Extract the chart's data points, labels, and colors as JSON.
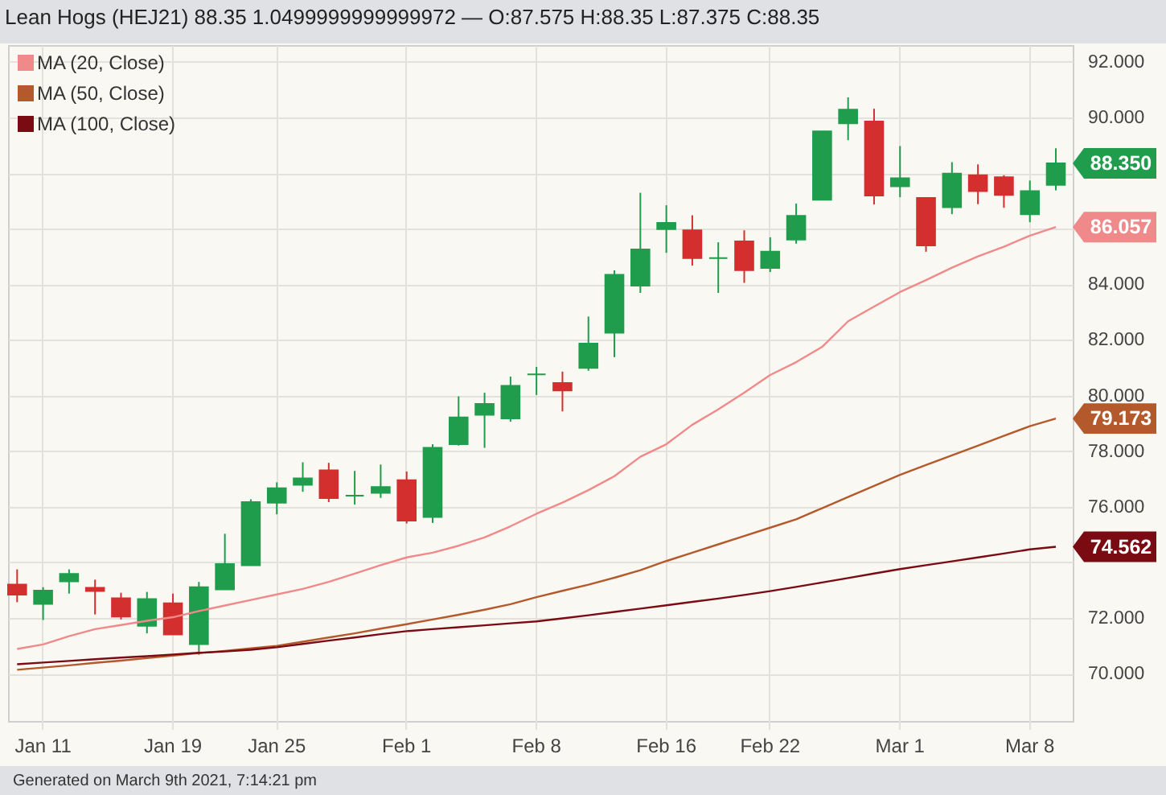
{
  "chart_data": {
    "type": "candlestick",
    "title": "Lean Hogs (HEJ21) 88.35 1.0499999999999972 — O:87.575 H:88.35 L:87.375 C:88.35",
    "categories": [
      null,
      "Jan 11",
      null,
      null,
      null,
      null,
      "Jan 19",
      null,
      null,
      null,
      "Jan 25",
      null,
      null,
      null,
      null,
      "Feb 1",
      null,
      null,
      null,
      null,
      "Feb 8",
      null,
      null,
      null,
      null,
      "Feb 16",
      null,
      null,
      null,
      "Feb 22",
      null,
      null,
      null,
      null,
      "Mar 1",
      null,
      null,
      null,
      null,
      "Mar 8",
      null
    ],
    "ohlc": [
      [
        73.2,
        73.75,
        72.57,
        72.84
      ],
      [
        72.51,
        73.11,
        71.93,
        72.99
      ],
      [
        73.32,
        73.75,
        72.88,
        73.59
      ],
      [
        73.09,
        73.38,
        72.13,
        72.97
      ],
      [
        72.71,
        72.91,
        71.95,
        72.05
      ],
      [
        71.72,
        72.94,
        71.45,
        72.68
      ],
      [
        72.53,
        72.88,
        71.41,
        71.41
      ],
      [
        71.06,
        73.3,
        70.68,
        73.11
      ],
      [
        73.03,
        75.03,
        73.03,
        73.94
      ],
      [
        73.9,
        76.27,
        73.9,
        76.17
      ],
      [
        76.15,
        76.88,
        75.73,
        76.67
      ],
      [
        76.79,
        77.6,
        76.54,
        77.02
      ],
      [
        77.31,
        77.58,
        76.17,
        76.31
      ],
      [
        76.4,
        77.29,
        76.08,
        76.4
      ],
      [
        76.5,
        77.52,
        76.32,
        76.71
      ],
      [
        76.96,
        77.27,
        75.4,
        75.5
      ],
      [
        75.63,
        78.25,
        75.42,
        78.12
      ],
      [
        78.25,
        79.97,
        78.2,
        79.21
      ],
      [
        79.31,
        80.1,
        78.12,
        79.7
      ],
      [
        79.18,
        80.68,
        79.06,
        80.35
      ],
      [
        80.76,
        81.03,
        80.02,
        80.76
      ],
      [
        80.45,
        80.86,
        79.43,
        80.18
      ],
      [
        80.99,
        82.84,
        80.89,
        81.87
      ],
      [
        82.26,
        84.5,
        81.38,
        84.34
      ],
      [
        83.95,
        87.29,
        83.69,
        85.25
      ],
      [
        85.98,
        86.84,
        85.13,
        86.21
      ],
      [
        85.94,
        86.48,
        84.67,
        84.94
      ],
      [
        84.94,
        85.51,
        83.69,
        84.94
      ],
      [
        85.54,
        85.94,
        84.05,
        84.51
      ],
      [
        84.59,
        85.69,
        84.44,
        85.17
      ],
      [
        85.61,
        86.9,
        85.46,
        86.46
      ],
      [
        87.04,
        89.5,
        87.04,
        89.5
      ],
      [
        89.79,
        90.72,
        89.18,
        90.28
      ],
      [
        89.85,
        90.31,
        86.87,
        87.19
      ],
      [
        87.52,
        88.97,
        87.13,
        87.81
      ],
      [
        87.1,
        87.1,
        85.17,
        85.4
      ],
      [
        86.77,
        88.39,
        86.52,
        87.98
      ],
      [
        87.92,
        88.31,
        86.88,
        87.35
      ],
      [
        87.85,
        87.92,
        86.75,
        87.21
      ],
      [
        86.52,
        87.73,
        86.23,
        87.35
      ],
      [
        87.575,
        88.89,
        87.375,
        88.35
      ]
    ],
    "colors": [
      "#d32f2f",
      "#1f9d4c",
      "#1f9d4c",
      "#d32f2f",
      "#d32f2f",
      "#1f9d4c",
      "#d32f2f",
      "#1f9d4c",
      "#1f9d4c",
      "#1f9d4c",
      "#1f9d4c",
      "#1f9d4c",
      "#d32f2f",
      "#1f9d4c",
      "#1f9d4c",
      "#d32f2f",
      "#1f9d4c",
      "#1f9d4c",
      "#1f9d4c",
      "#1f9d4c",
      "#1f9d4c",
      "#d32f2f",
      "#1f9d4c",
      "#1f9d4c",
      "#1f9d4c",
      "#1f9d4c",
      "#d32f2f",
      "#1f9d4c",
      "#d32f2f",
      "#1f9d4c",
      "#1f9d4c",
      "#1f9d4c",
      "#1f9d4c",
      "#d32f2f",
      "#1f9d4c",
      "#d32f2f",
      "#1f9d4c",
      "#d32f2f",
      "#d32f2f",
      "#1f9d4c",
      "#1f9d4c"
    ],
    "series": [
      {
        "name": "MA (20, Close)",
        "type": "line",
        "color": "#f08a8a",
        "values": [
          70.89,
          71.05,
          71.35,
          71.6,
          71.75,
          71.9,
          72.03,
          72.25,
          72.45,
          72.65,
          72.85,
          73.05,
          73.3,
          73.6,
          73.9,
          74.18,
          74.35,
          74.6,
          74.9,
          75.3,
          75.75,
          76.15,
          76.6,
          77.1,
          77.8,
          78.25,
          78.95,
          79.5,
          80.1,
          80.74,
          81.2,
          81.75,
          82.67,
          83.2,
          83.72,
          84.15,
          84.6,
          85.0,
          85.35,
          85.75,
          86.057
        ],
        "value_labels": [
          null,
          null,
          null,
          null,
          null,
          null,
          null,
          null,
          null,
          null,
          null,
          null,
          null,
          null,
          null,
          null,
          null,
          null,
          null,
          null,
          null,
          null,
          null,
          null,
          null,
          null,
          null,
          null,
          null,
          null,
          null,
          null,
          null,
          null,
          null,
          null,
          null,
          null,
          null,
          null,
          "86.057"
        ]
      },
      {
        "name": "MA (50, Close)",
        "type": "line",
        "color": "#b4592b",
        "values": [
          70.14,
          70.22,
          70.3,
          70.39,
          70.47,
          70.56,
          70.65,
          70.74,
          70.82,
          70.91,
          71.0,
          71.15,
          71.3,
          71.45,
          71.62,
          71.78,
          71.95,
          72.12,
          72.3,
          72.5,
          72.75,
          72.98,
          73.2,
          73.45,
          73.72,
          74.05,
          74.35,
          74.65,
          74.95,
          75.25,
          75.55,
          75.95,
          76.35,
          76.75,
          77.15,
          77.5,
          77.85,
          78.2,
          78.55,
          78.9,
          79.173
        ],
        "value_labels": [
          null,
          null,
          null,
          null,
          null,
          null,
          null,
          null,
          null,
          null,
          null,
          null,
          null,
          null,
          null,
          null,
          null,
          null,
          null,
          null,
          null,
          null,
          null,
          null,
          null,
          null,
          null,
          null,
          null,
          null,
          null,
          null,
          null,
          null,
          null,
          null,
          null,
          null,
          null,
          null,
          "79.173"
        ]
      },
      {
        "name": "MA (100, Close)",
        "type": "line",
        "color": "#7b0b13",
        "values": [
          70.34,
          70.4,
          70.46,
          70.52,
          70.58,
          70.63,
          70.69,
          70.75,
          70.8,
          70.86,
          70.95,
          71.07,
          71.19,
          71.3,
          71.42,
          71.53,
          71.6,
          71.67,
          71.74,
          71.81,
          71.88,
          71.99,
          72.1,
          72.22,
          72.34,
          72.46,
          72.58,
          72.7,
          72.83,
          72.97,
          73.12,
          73.28,
          73.44,
          73.6,
          73.76,
          73.9,
          74.04,
          74.18,
          74.32,
          74.47,
          74.562
        ],
        "value_labels": [
          null,
          null,
          null,
          null,
          null,
          null,
          null,
          null,
          null,
          null,
          null,
          null,
          null,
          null,
          null,
          null,
          null,
          null,
          null,
          null,
          null,
          null,
          null,
          null,
          null,
          null,
          null,
          null,
          null,
          null,
          null,
          null,
          null,
          null,
          null,
          null,
          null,
          null,
          null,
          null,
          "74.562"
        ]
      }
    ],
    "ylim": [
      68.3,
      92.6
    ],
    "yticks": [
      {
        "value": 70,
        "label": "70.000"
      },
      {
        "value": 72,
        "label": "72.000"
      },
      {
        "value": 74,
        "label": null
      },
      {
        "value": 76,
        "label": "76.000"
      },
      {
        "value": 78,
        "label": "78.000"
      },
      {
        "value": 80,
        "label": "80.000"
      },
      {
        "value": 82,
        "label": "82.000"
      },
      {
        "value": 84,
        "label": "84.000"
      },
      {
        "value": 86,
        "label": null
      },
      {
        "value": 88,
        "label": null
      },
      {
        "value": 90,
        "label": "90.000"
      },
      {
        "value": 92,
        "label": "92.000"
      }
    ],
    "grid": true,
    "legend": "top left",
    "annotations": [
      "88.350",
      "Generated on March 9th 2021, 7:14:21 pm"
    ]
  }
}
